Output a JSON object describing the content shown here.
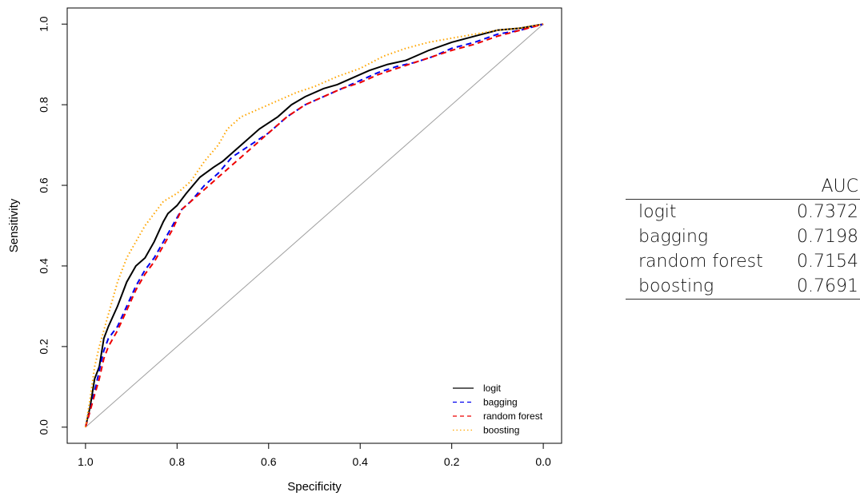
{
  "chart_data": {
    "type": "line",
    "title": "",
    "xlabel": "Specificity",
    "ylabel": "Sensitivity",
    "xlim": [
      1.04,
      -0.04
    ],
    "ylim": [
      -0.04,
      1.04
    ],
    "x_reversed": true,
    "x_ticks": [
      {
        "value": 1.0,
        "label": "1.0"
      },
      {
        "value": 0.8,
        "label": "0.8"
      },
      {
        "value": 0.6,
        "label": "0.6"
      },
      {
        "value": 0.4,
        "label": "0.4"
      },
      {
        "value": 0.2,
        "label": "0.2"
      },
      {
        "value": 0.0,
        "label": "0.0"
      }
    ],
    "y_ticks": [
      {
        "value": 0.0,
        "label": "0.0"
      },
      {
        "value": 0.2,
        "label": "0.2"
      },
      {
        "value": 0.4,
        "label": "0.4"
      },
      {
        "value": 0.6,
        "label": "0.6"
      },
      {
        "value": 0.8,
        "label": "0.8"
      },
      {
        "value": 1.0,
        "label": "1.0"
      }
    ],
    "grid": false,
    "legend_position": "bottom-right",
    "reference_line": {
      "x": [
        1.0,
        0.0
      ],
      "y": [
        0.0,
        1.0
      ],
      "color": "#a0a0a0"
    },
    "series": [
      {
        "name": "logit",
        "color": "#000000",
        "dash": "solid",
        "specificity": [
          1.0,
          0.99,
          0.98,
          0.97,
          0.96,
          0.95,
          0.93,
          0.91,
          0.89,
          0.87,
          0.85,
          0.83,
          0.82,
          0.8,
          0.78,
          0.75,
          0.72,
          0.7,
          0.66,
          0.62,
          0.58,
          0.55,
          0.52,
          0.48,
          0.45,
          0.42,
          0.38,
          0.34,
          0.3,
          0.25,
          0.2,
          0.15,
          0.1,
          0.05,
          0.0
        ],
        "sensitivity": [
          0.0,
          0.05,
          0.12,
          0.15,
          0.22,
          0.25,
          0.3,
          0.36,
          0.4,
          0.42,
          0.46,
          0.51,
          0.53,
          0.55,
          0.58,
          0.62,
          0.645,
          0.66,
          0.7,
          0.74,
          0.77,
          0.8,
          0.82,
          0.84,
          0.85,
          0.865,
          0.885,
          0.9,
          0.91,
          0.935,
          0.955,
          0.97,
          0.985,
          0.99,
          1.0
        ]
      },
      {
        "name": "bagging",
        "color": "#0000ee",
        "dash": "dashed",
        "specificity": [
          1.0,
          0.99,
          0.98,
          0.97,
          0.96,
          0.95,
          0.93,
          0.91,
          0.89,
          0.87,
          0.85,
          0.83,
          0.81,
          0.79,
          0.77,
          0.74,
          0.71,
          0.68,
          0.64,
          0.6,
          0.56,
          0.52,
          0.48,
          0.44,
          0.4,
          0.36,
          0.32,
          0.28,
          0.24,
          0.2,
          0.15,
          0.1,
          0.05,
          0.0
        ],
        "sensitivity": [
          0.0,
          0.04,
          0.09,
          0.14,
          0.19,
          0.22,
          0.25,
          0.3,
          0.35,
          0.39,
          0.42,
          0.46,
          0.5,
          0.54,
          0.56,
          0.6,
          0.63,
          0.67,
          0.7,
          0.73,
          0.77,
          0.8,
          0.82,
          0.84,
          0.86,
          0.88,
          0.895,
          0.905,
          0.92,
          0.94,
          0.955,
          0.975,
          0.985,
          1.0
        ]
      },
      {
        "name": "random forest",
        "color": "#ee0000",
        "dash": "dashed",
        "specificity": [
          1.0,
          0.99,
          0.98,
          0.97,
          0.96,
          0.95,
          0.93,
          0.91,
          0.89,
          0.87,
          0.85,
          0.83,
          0.81,
          0.79,
          0.77,
          0.74,
          0.71,
          0.68,
          0.64,
          0.6,
          0.56,
          0.52,
          0.48,
          0.44,
          0.4,
          0.36,
          0.32,
          0.28,
          0.24,
          0.2,
          0.15,
          0.1,
          0.05,
          0.0
        ],
        "sensitivity": [
          0.0,
          0.04,
          0.08,
          0.12,
          0.17,
          0.2,
          0.24,
          0.29,
          0.34,
          0.38,
          0.41,
          0.45,
          0.49,
          0.54,
          0.56,
          0.59,
          0.62,
          0.65,
          0.69,
          0.73,
          0.77,
          0.8,
          0.82,
          0.84,
          0.855,
          0.875,
          0.89,
          0.905,
          0.92,
          0.935,
          0.95,
          0.97,
          0.985,
          1.0
        ]
      },
      {
        "name": "boosting",
        "color": "#ffa500",
        "dash": "dotted",
        "specificity": [
          1.0,
          0.99,
          0.98,
          0.97,
          0.96,
          0.95,
          0.93,
          0.91,
          0.89,
          0.87,
          0.85,
          0.83,
          0.8,
          0.77,
          0.74,
          0.71,
          0.69,
          0.66,
          0.62,
          0.58,
          0.54,
          0.5,
          0.45,
          0.4,
          0.35,
          0.3,
          0.25,
          0.2,
          0.15,
          0.1,
          0.05,
          0.0
        ],
        "sensitivity": [
          0.0,
          0.07,
          0.15,
          0.2,
          0.24,
          0.28,
          0.36,
          0.42,
          0.46,
          0.5,
          0.53,
          0.56,
          0.58,
          0.61,
          0.66,
          0.7,
          0.74,
          0.77,
          0.79,
          0.81,
          0.83,
          0.845,
          0.87,
          0.89,
          0.92,
          0.94,
          0.955,
          0.965,
          0.975,
          0.985,
          0.99,
          1.0
        ]
      }
    ]
  },
  "auc_table": {
    "header": "AUC",
    "rows": [
      {
        "model": "logit",
        "auc": "0.7372"
      },
      {
        "model": "bagging",
        "auc": "0.7198"
      },
      {
        "model": "random forest",
        "auc": "0.7154"
      },
      {
        "model": "boosting",
        "auc": "0.7691"
      }
    ]
  }
}
